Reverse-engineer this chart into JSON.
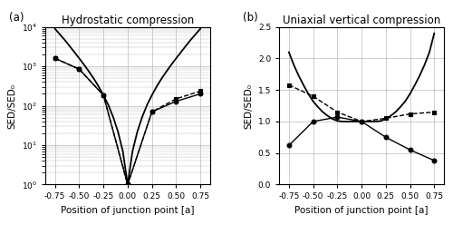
{
  "panel_a_title": "Hydrostatic compression",
  "panel_b_title": "Uniaxial vertical compression",
  "xlabel": "Position of junction point [a]",
  "ylabel_a": "SED/SED₀",
  "ylabel_b": "SED/SED₀",
  "panel_a_label": "(a)",
  "panel_b_label": "(b)",
  "a_circles_x": [
    -0.75,
    -0.5,
    -0.25,
    0.0,
    0.25,
    0.5,
    0.75
  ],
  "a_circles_y": [
    1600,
    850,
    185,
    1.0,
    70,
    130,
    200
  ],
  "a_squares_x": [
    -0.75,
    -0.5,
    -0.25,
    0.0,
    0.25,
    0.5,
    0.75
  ],
  "a_squares_y": [
    1600,
    850,
    185,
    1.0,
    70,
    150,
    235
  ],
  "a_line_x": [
    -0.75,
    -0.7,
    -0.65,
    -0.6,
    -0.55,
    -0.5,
    -0.45,
    -0.4,
    -0.35,
    -0.3,
    -0.25,
    -0.2,
    -0.15,
    -0.1,
    -0.05,
    0.0,
    0.05,
    0.1,
    0.15,
    0.2,
    0.25,
    0.3,
    0.35,
    0.4,
    0.45,
    0.5,
    0.55,
    0.6,
    0.65,
    0.7,
    0.75
  ],
  "a_line_y": [
    9000,
    6500,
    4700,
    3300,
    2300,
    1600,
    1100,
    740,
    490,
    310,
    185,
    105,
    52,
    22,
    7,
    1.0,
    7,
    22,
    52,
    105,
    185,
    310,
    490,
    740,
    1100,
    1600,
    2300,
    3300,
    4700,
    6500,
    9000
  ],
  "b_circles_x": [
    -0.75,
    -0.5,
    -0.25,
    0.0,
    0.25,
    0.5,
    0.75
  ],
  "b_circles_y": [
    0.62,
    1.0,
    1.07,
    1.0,
    0.75,
    0.55,
    0.38
  ],
  "b_squares_x": [
    -0.75,
    -0.5,
    -0.25,
    0.0,
    0.25,
    0.5,
    0.75
  ],
  "b_squares_y": [
    1.58,
    1.4,
    1.15,
    1.0,
    1.05,
    1.12,
    1.15
  ],
  "b_line_x": [
    -0.75,
    -0.7,
    -0.65,
    -0.6,
    -0.55,
    -0.5,
    -0.45,
    -0.4,
    -0.35,
    -0.3,
    -0.25,
    -0.2,
    -0.15,
    -0.1,
    -0.05,
    0.0,
    0.05,
    0.1,
    0.15,
    0.2,
    0.25,
    0.3,
    0.35,
    0.4,
    0.45,
    0.5,
    0.55,
    0.6,
    0.65,
    0.7,
    0.75
  ],
  "b_line_y": [
    2.1,
    1.9,
    1.73,
    1.58,
    1.44,
    1.32,
    1.23,
    1.15,
    1.09,
    1.04,
    1.01,
    1.0,
    1.0,
    1.0,
    1.0,
    1.0,
    1.0,
    1.0,
    1.0,
    1.01,
    1.04,
    1.09,
    1.15,
    1.23,
    1.32,
    1.44,
    1.58,
    1.73,
    1.9,
    2.1,
    2.4
  ],
  "xticks": [
    -0.75,
    -0.5,
    -0.25,
    0.0,
    0.25,
    0.5,
    0.75
  ],
  "xtick_labels": [
    "-0.75",
    "-0.50",
    "-0.25",
    "0.00",
    "0.25",
    "0.50",
    "0.75"
  ],
  "a_ylim": [
    1,
    10000
  ],
  "b_ylim": [
    0.0,
    2.5
  ],
  "b_yticks": [
    0.0,
    0.5,
    1.0,
    1.5,
    2.0,
    2.5
  ],
  "b_ytick_labels": [
    "0.0",
    "0.5",
    "1.0",
    "1.5",
    "2.0",
    "2.5"
  ],
  "line_color": "#000000",
  "marker_circle_face": "#000000",
  "marker_square_face": "#000000",
  "grid_color": "#bbbbbb",
  "bg_color": "#ffffff",
  "tick_fontsize": 6.5,
  "label_fontsize": 7.5,
  "title_fontsize": 8.5,
  "subplot_label_fontsize": 8.5
}
